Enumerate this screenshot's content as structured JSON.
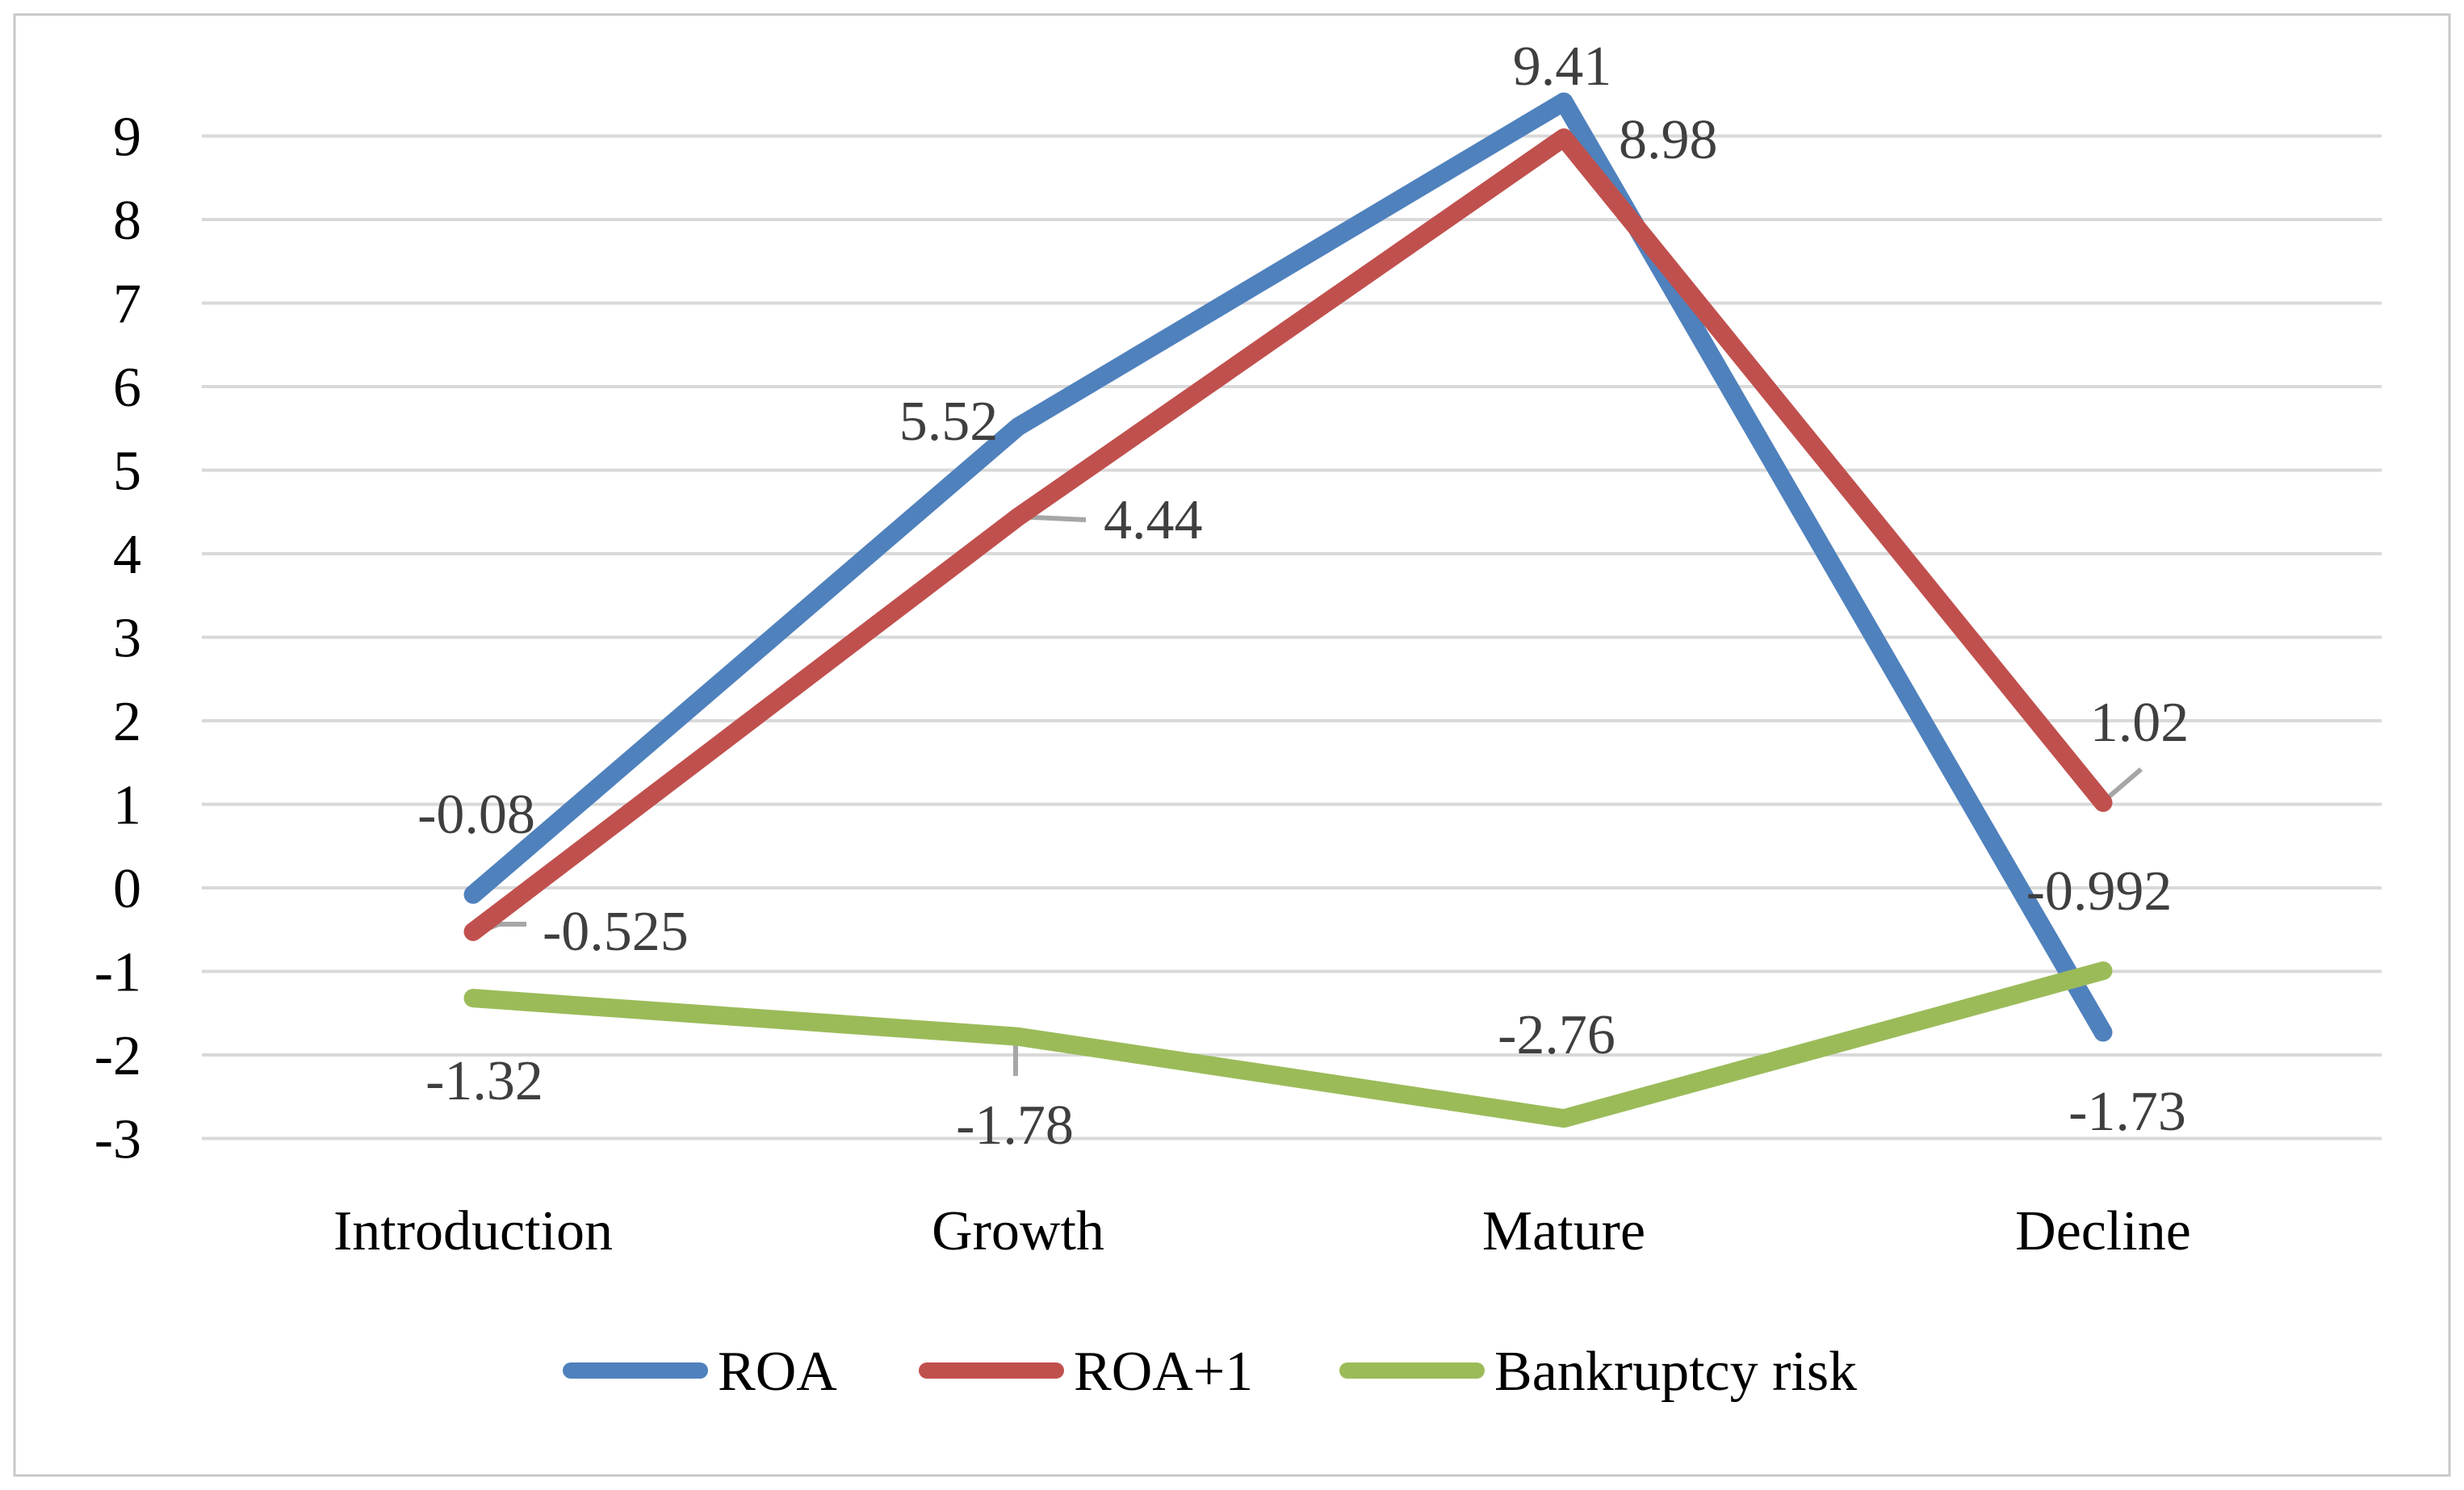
{
  "figure": {
    "background": "#ffffff",
    "border_color": "#c8c8c8"
  },
  "chart_data": {
    "type": "line",
    "title": "",
    "xlabel": "",
    "ylabel": "",
    "categories": [
      "Introduction",
      "Growth",
      "Mature",
      "Decline"
    ],
    "series": [
      {
        "name": "ROA",
        "color": "#4F81BD",
        "values": [
          -0.08,
          5.52,
          9.41,
          -1.73
        ],
        "data_labels": [
          "-0.08",
          "5.52",
          "9.41",
          "-1.73"
        ]
      },
      {
        "name": "ROA+1",
        "color": "#C0504D",
        "values": [
          -0.525,
          4.44,
          8.98,
          1.02
        ],
        "data_labels": [
          "-0.525",
          "4.44",
          "8.98",
          "1.02"
        ]
      },
      {
        "name": "Bankruptcy risk",
        "color": "#9BBB59",
        "values": [
          -1.32,
          -1.78,
          -2.76,
          -0.992
        ],
        "data_labels": [
          "-1.32",
          "-1.78",
          "-2.76",
          "-0.992"
        ]
      }
    ],
    "y_axis": {
      "min": -3,
      "max": 9,
      "step": 1,
      "tick_labels": [
        "9",
        "8",
        "7",
        "6",
        "5",
        "4",
        "3",
        "2",
        "1",
        "0",
        "-1",
        "-2",
        "-3"
      ]
    },
    "grid": true,
    "legend_position": "bottom-center",
    "style_colors": {
      "gridline": "#d9d9d9",
      "leader_line": "#a6a6a6",
      "data_label_text": "#3f3f3f",
      "axis_text": "#000000"
    }
  }
}
